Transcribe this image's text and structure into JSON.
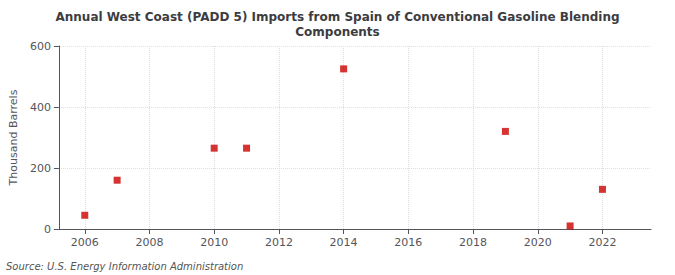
{
  "chart_data": {
    "type": "scatter",
    "title": "Annual West Coast (PADD 5) Imports from Spain of Conventional Gasoline Blending\nComponents",
    "ylabel": "Thousand Barrels",
    "annotations": [
      "Source: U.S. Energy Information Administration"
    ],
    "x": [
      2006,
      2007,
      2010,
      2011,
      2014,
      2019,
      2021,
      2022
    ],
    "values": [
      45,
      160,
      265,
      265,
      525,
      320,
      10,
      130
    ],
    "color": "#cc0000",
    "marker": "square",
    "xlim": [
      2005.2,
      2023.5
    ],
    "xticks": [
      2006,
      2008,
      2010,
      2012,
      2014,
      2016,
      2018,
      2020,
      2022
    ],
    "ylim": [
      0,
      600
    ],
    "yticks": [
      0,
      200,
      400,
      600
    ],
    "grid": true
  }
}
